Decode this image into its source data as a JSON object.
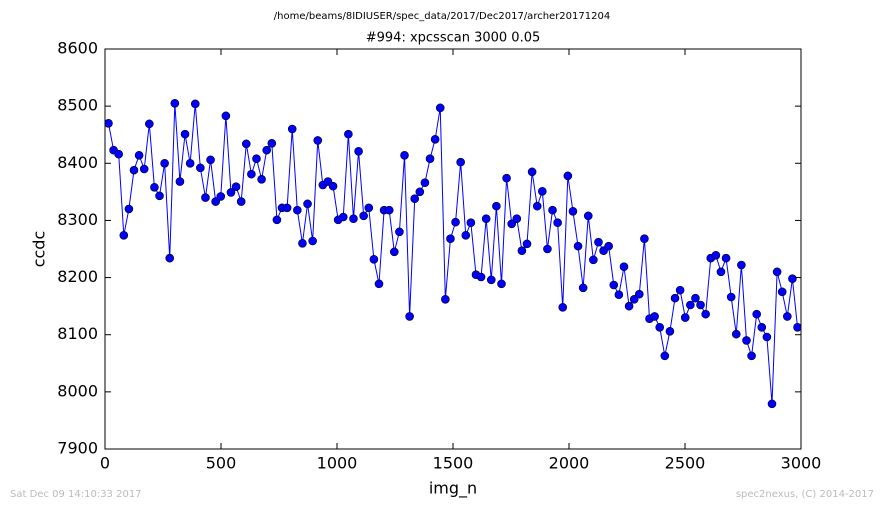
{
  "chart_data": {
    "type": "line",
    "suptitle": "/home/beams/8IDIUSER/spec_data/2017/Dec2017/archer20171204",
    "title": "#994: xpcsscan 3000 0.05",
    "x_label": "img_n",
    "y_label": "ccdc",
    "xlim": [
      0,
      3000
    ],
    "ylim": [
      7900,
      8600
    ],
    "xticks": [
      0,
      500,
      1000,
      1500,
      2000,
      2500,
      3000
    ],
    "yticks": [
      7900,
      8000,
      8100,
      8200,
      8300,
      8400,
      8500,
      8600
    ],
    "color": "#0000ff",
    "marker": "circle",
    "x": [
      15,
      37,
      59,
      81,
      103,
      125,
      147,
      169,
      191,
      213,
      235,
      257,
      279,
      301,
      323,
      345,
      367,
      389,
      411,
      433,
      455,
      477,
      499,
      521,
      543,
      565,
      587,
      609,
      631,
      653,
      675,
      697,
      719,
      741,
      763,
      785,
      807,
      829,
      851,
      873,
      895,
      917,
      939,
      961,
      983,
      1005,
      1027,
      1049,
      1071,
      1093,
      1115,
      1137,
      1159,
      1181,
      1203,
      1225,
      1247,
      1269,
      1291,
      1313,
      1335,
      1357,
      1379,
      1401,
      1423,
      1445,
      1467,
      1489,
      1511,
      1533,
      1555,
      1577,
      1599,
      1621,
      1643,
      1665,
      1687,
      1709,
      1731,
      1753,
      1775,
      1797,
      1819,
      1841,
      1863,
      1885,
      1907,
      1929,
      1951,
      1973,
      1995,
      2017,
      2039,
      2061,
      2083,
      2105,
      2127,
      2149,
      2171,
      2193,
      2215,
      2237,
      2259,
      2281,
      2303,
      2325,
      2347,
      2369,
      2391,
      2413,
      2435,
      2457,
      2479,
      2501,
      2523,
      2545,
      2567,
      2589,
      2611,
      2633,
      2655,
      2677,
      2699,
      2721,
      2743,
      2765,
      2787,
      2809,
      2831,
      2853,
      2875,
      2897,
      2919,
      2941,
      2963,
      2985
    ],
    "values": [
      8470,
      8423,
      8416,
      8274,
      8320,
      8388,
      8414,
      8390,
      8469,
      8358,
      8343,
      8400,
      8234,
      8505,
      8368,
      8451,
      8400,
      8504,
      8392,
      8340,
      8406,
      8333,
      8342,
      8483,
      8349,
      8359,
      8333,
      8434,
      8381,
      8408,
      8372,
      8423,
      8435,
      8301,
      8322,
      8322,
      8460,
      8318,
      8260,
      8329,
      8264,
      8440,
      8362,
      8368,
      8360,
      8301,
      8306,
      8451,
      8303,
      8421,
      8308,
      8322,
      8232,
      8189,
      8318,
      8318,
      8245,
      8280,
      8414,
      8132,
      8338,
      8350,
      8366,
      8408,
      8442,
      8497,
      8162,
      8268,
      8297,
      8402,
      8274,
      8296,
      8205,
      8201,
      8303,
      8196,
      8325,
      8189,
      8374,
      8294,
      8303,
      8247,
      8259,
      8385,
      8325,
      8351,
      8250,
      8318,
      8296,
      8148,
      8378,
      8316,
      8255,
      8182,
      8308,
      8231,
      8262,
      8247,
      8255,
      8187,
      8170,
      8219,
      8150,
      8162,
      8171,
      8268,
      8128,
      8132,
      8113,
      8063,
      8106,
      8164,
      8178,
      8130,
      8152,
      8164,
      8152,
      8136,
      8234,
      8239,
      8210,
      8234,
      8166,
      8101,
      8222,
      8090,
      8063,
      8136,
      8113,
      8096,
      7979,
      8210,
      8175,
      8132,
      8198,
      8113
    ]
  },
  "footer": {
    "left": "Sat Dec 09 14:10:33 2017",
    "right": "spec2nexus, (C) 2014-2017"
  }
}
